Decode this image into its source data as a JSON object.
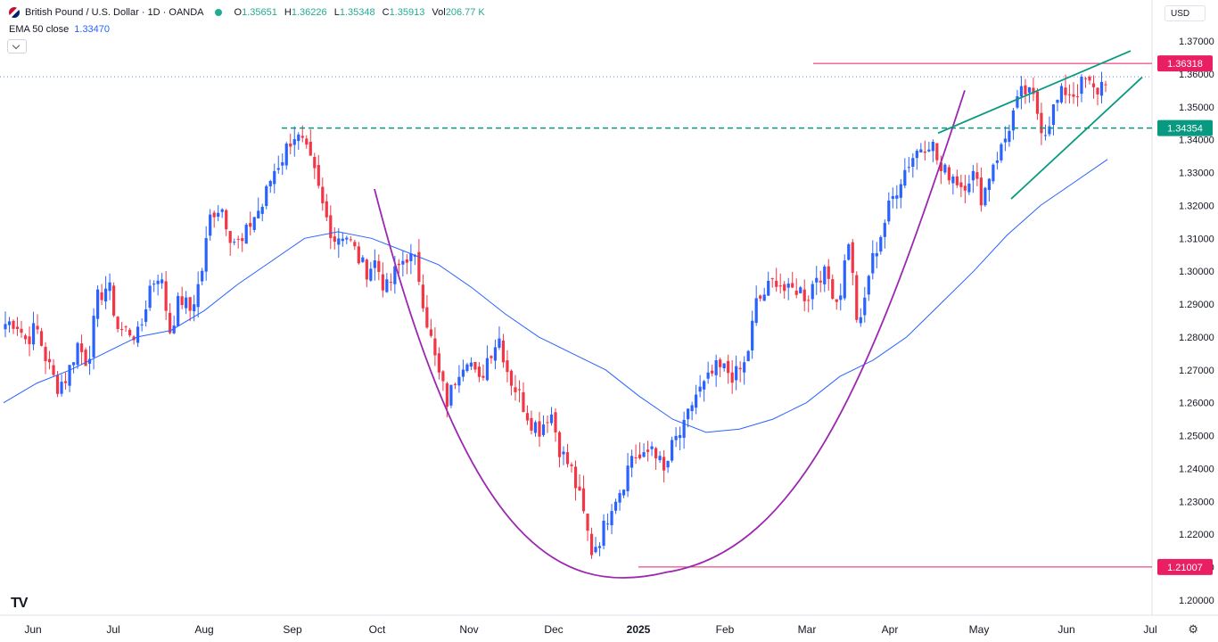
{
  "header": {
    "symbol": "British Pound / U.S. Dollar · 1D · OANDA",
    "ohlc": [
      {
        "k": "O",
        "v": "1.35651"
      },
      {
        "k": "H",
        "v": "1.36226"
      },
      {
        "k": "L",
        "v": "1.35348"
      },
      {
        "k": "C",
        "v": "1.35913"
      },
      {
        "k": "Vol",
        "v": "206.77 K"
      }
    ],
    "ema_label": "EMA 50 close",
    "ema_value": "1.33470",
    "currency": "USD"
  },
  "colors": {
    "up": "#2962ff",
    "down": "#f23645",
    "ema": "#2962ff",
    "cup": "#9c27b0",
    "channel": "#089981",
    "hline": "#e91e63"
  },
  "chart_data": {
    "type": "candlestick",
    "instrument": "GBP/USD",
    "timeframe": "1D",
    "ylim": [
      1.195,
      1.373
    ],
    "y_ticks": [
      "1.37000",
      "1.36000",
      "1.35000",
      "1.34000",
      "1.33000",
      "1.32000",
      "1.31000",
      "1.30000",
      "1.29000",
      "1.28000",
      "1.27000",
      "1.26000",
      "1.25000",
      "1.24000",
      "1.23000",
      "1.22000",
      "1.21000",
      "1.20000"
    ],
    "x_ticks": [
      "Jun",
      "Jul",
      "Aug",
      "Sep",
      "Oct",
      "Nov",
      "Dec",
      "2025",
      "Feb",
      "Mar",
      "Apr",
      "May",
      "Jun",
      "Jul"
    ],
    "price_labels": [
      {
        "text": "1.36318",
        "value": 1.36318,
        "color": "#e91e63"
      },
      {
        "text": "1.34354",
        "value": 1.34354,
        "color": "#089981"
      },
      {
        "text": "1.21007",
        "value": 1.21007,
        "color": "#e91e63"
      }
    ],
    "anchors": [
      1.284,
      1.285,
      1.279,
      1.283,
      1.273,
      1.265,
      1.268,
      1.278,
      1.272,
      1.292,
      1.296,
      1.282,
      1.282,
      1.28,
      1.295,
      1.3,
      1.282,
      1.292,
      1.288,
      1.298,
      1.318,
      1.32,
      1.31,
      1.308,
      1.316,
      1.32,
      1.33,
      1.335,
      1.342,
      1.338,
      1.33,
      1.318,
      1.31,
      1.312,
      1.306,
      1.3,
      1.303,
      1.294,
      1.3,
      1.305,
      1.302,
      1.285,
      1.27,
      1.26,
      1.27,
      1.275,
      1.265,
      1.275,
      1.28,
      1.268,
      1.262,
      1.255,
      1.252,
      1.258,
      1.245,
      1.24,
      1.229,
      1.215,
      1.22,
      1.23,
      1.235,
      1.245,
      1.242,
      1.248,
      1.238,
      1.248,
      1.252,
      1.262,
      1.265,
      1.27,
      1.27,
      1.268,
      1.272,
      1.29,
      1.294,
      1.298,
      1.293,
      1.295,
      1.292,
      1.3,
      1.298,
      1.29,
      1.31,
      1.28,
      1.3,
      1.31,
      1.32,
      1.328,
      1.334,
      1.338,
      1.34,
      1.33,
      1.33,
      1.326,
      1.33,
      1.322,
      1.333,
      1.338,
      1.348,
      1.355,
      1.352,
      1.342,
      1.35,
      1.355,
      1.354,
      1.358,
      1.354,
      1.359
    ],
    "ema50_anchors": [
      1.26,
      1.266,
      1.27,
      1.275,
      1.28,
      1.282,
      1.288,
      1.296,
      1.303,
      1.31,
      1.312,
      1.31,
      1.306,
      1.302,
      1.295,
      1.287,
      1.28,
      1.275,
      1.27,
      1.262,
      1.255,
      1.251,
      1.252,
      1.255,
      1.26,
      1.268,
      1.273,
      1.28,
      1.29,
      1.3,
      1.311,
      1.32,
      1.327,
      1.334
    ],
    "annotations": {
      "cup": {
        "start_value": 1.325,
        "bottom_value": 1.2085,
        "end_value": 1.355
      },
      "rising_wedge": {
        "upper": [
          1.342,
          1.367
        ],
        "lower": [
          1.322,
          1.359
        ]
      },
      "ema_last": 1.3347
    }
  }
}
